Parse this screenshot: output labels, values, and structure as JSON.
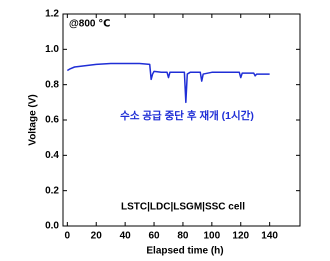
{
  "chart_data": {
    "type": "line",
    "x_label": "Elapsed time (h)",
    "y_label": "Voltage (V)",
    "annotations": [
      "@800 ℃",
      "수소 공급 중단 후 재개 (1시간)",
      "LSTC|LDC|LSGM|SSC  cell"
    ],
    "series": [
      {
        "color": "#1f2ed6",
        "x": [
          0,
          2,
          5,
          10,
          15,
          20,
          30,
          40,
          50,
          57,
          58,
          59,
          60,
          65,
          69,
          70,
          71,
          75,
          81,
          82,
          83,
          85,
          92,
          93,
          94,
          100,
          110,
          119,
          120,
          121,
          125,
          129,
          130,
          131,
          135,
          140
        ],
        "values": [
          0.88,
          0.89,
          0.9,
          0.905,
          0.91,
          0.915,
          0.92,
          0.92,
          0.92,
          0.915,
          0.83,
          0.86,
          0.875,
          0.87,
          0.87,
          0.84,
          0.87,
          0.87,
          0.87,
          0.7,
          0.86,
          0.87,
          0.87,
          0.82,
          0.86,
          0.87,
          0.87,
          0.87,
          0.84,
          0.865,
          0.865,
          0.865,
          0.85,
          0.86,
          0.86,
          0.86
        ]
      }
    ],
    "xlim": [
      -3,
      161
    ],
    "ylim": [
      0,
      1.2
    ],
    "xticks": [
      0,
      20,
      40,
      60,
      80,
      100,
      120,
      140
    ],
    "yticks": [
      {
        "value": 0,
        "label": "0.0"
      },
      0.2,
      0.4,
      0.6,
      0.8,
      {
        "value": 1,
        "label": "1.0"
      },
      1.2
    ]
  }
}
